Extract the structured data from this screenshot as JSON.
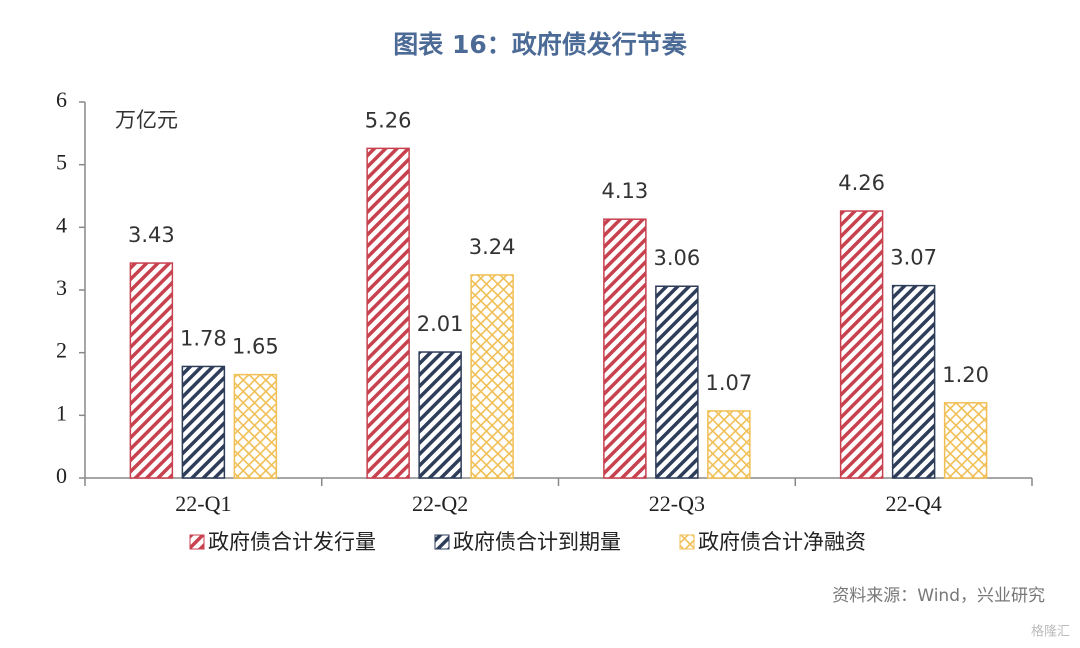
{
  "chart_data": {
    "type": "bar",
    "title": "图表 16：政府债发行节奏",
    "y_unit_label": "万亿元",
    "categories": [
      "22-Q1",
      "22-Q2",
      "22-Q3",
      "22-Q4"
    ],
    "series": [
      {
        "name": "政府债合计发行量",
        "color": "#c8414f",
        "pattern": "stripes",
        "values": [
          3.43,
          5.26,
          4.13,
          4.26
        ],
        "value_labels": [
          "3.43",
          "5.26",
          "4.13",
          "4.26"
        ]
      },
      {
        "name": "政府债合计到期量",
        "color": "#2e3d5a",
        "pattern": "stripes",
        "values": [
          1.78,
          2.01,
          3.06,
          3.07
        ],
        "value_labels": [
          "1.78",
          "2.01",
          "3.06",
          "3.07"
        ]
      },
      {
        "name": "政府债合计净融资",
        "color": "#f0bf55",
        "pattern": "crosshatch",
        "values": [
          1.65,
          3.24,
          1.07,
          1.2
        ],
        "value_labels": [
          "1.65",
          "3.24",
          "1.07",
          "1.20"
        ]
      }
    ],
    "ylim": [
      0,
      6
    ],
    "yticks": [
      0,
      1,
      2,
      3,
      4,
      5,
      6
    ],
    "grid": false,
    "source": "资料来源：Wind，兴业研究",
    "watermark": "格隆汇"
  }
}
